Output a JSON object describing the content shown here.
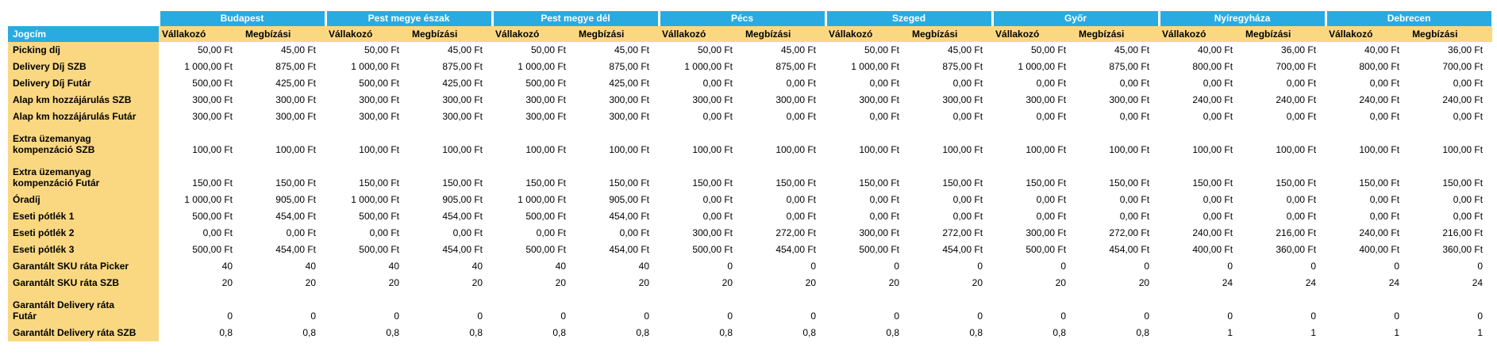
{
  "colors": {
    "header_blue": "#29abe2",
    "cell_yellow": "#fad882",
    "header_text": "#ffffff",
    "body_text": "#000000",
    "background": "#ffffff"
  },
  "table": {
    "corner_label": "Jogcím",
    "regions": [
      "Budapest",
      "Pest megye észak",
      "Pest megye dél",
      "Pécs",
      "Szeged",
      "Győr",
      "Nyíregyháza",
      "Debrecen"
    ],
    "region_subcolumns": [
      "Vállakozó",
      "Megbízási"
    ],
    "rows": [
      {
        "label": "Picking díj",
        "tall": false,
        "values": [
          "50,00 Ft",
          "45,00 Ft",
          "50,00 Ft",
          "45,00 Ft",
          "50,00 Ft",
          "45,00 Ft",
          "50,00 Ft",
          "45,00 Ft",
          "50,00 Ft",
          "45,00 Ft",
          "50,00 Ft",
          "45,00 Ft",
          "40,00 Ft",
          "36,00 Ft",
          "40,00 Ft",
          "36,00 Ft"
        ]
      },
      {
        "label": "Delivery Díj SZB",
        "tall": false,
        "values": [
          "1 000,00 Ft",
          "875,00 Ft",
          "1 000,00 Ft",
          "875,00 Ft",
          "1 000,00 Ft",
          "875,00 Ft",
          "1 000,00 Ft",
          "875,00 Ft",
          "1 000,00 Ft",
          "875,00 Ft",
          "1 000,00 Ft",
          "875,00 Ft",
          "800,00 Ft",
          "700,00 Ft",
          "800,00 Ft",
          "700,00 Ft"
        ]
      },
      {
        "label": "Delivery Díj Futár",
        "tall": false,
        "values": [
          "500,00 Ft",
          "425,00 Ft",
          "500,00 Ft",
          "425,00 Ft",
          "500,00 Ft",
          "425,00 Ft",
          "0,00 Ft",
          "0,00 Ft",
          "0,00 Ft",
          "0,00 Ft",
          "0,00 Ft",
          "0,00 Ft",
          "0,00 Ft",
          "0,00 Ft",
          "0,00 Ft",
          "0,00 Ft"
        ]
      },
      {
        "label": "Alap km hozzájárulás SZB",
        "tall": false,
        "values": [
          "300,00 Ft",
          "300,00 Ft",
          "300,00 Ft",
          "300,00 Ft",
          "300,00 Ft",
          "300,00 Ft",
          "300,00 Ft",
          "300,00 Ft",
          "300,00 Ft",
          "300,00 Ft",
          "300,00 Ft",
          "300,00 Ft",
          "240,00 Ft",
          "240,00 Ft",
          "240,00 Ft",
          "240,00 Ft"
        ]
      },
      {
        "label": "Alap km hozzájárulás Futár",
        "tall": false,
        "values": [
          "300,00 Ft",
          "300,00 Ft",
          "300,00 Ft",
          "300,00 Ft",
          "300,00 Ft",
          "300,00 Ft",
          "0,00 Ft",
          "0,00 Ft",
          "0,00 Ft",
          "0,00 Ft",
          "0,00 Ft",
          "0,00 Ft",
          "0,00 Ft",
          "0,00 Ft",
          "0,00 Ft",
          "0,00 Ft"
        ]
      },
      {
        "label": "Extra üzemanyag\nkompenzáció SZB",
        "tall": true,
        "values": [
          "100,00 Ft",
          "100,00 Ft",
          "100,00 Ft",
          "100,00 Ft",
          "100,00 Ft",
          "100,00 Ft",
          "100,00 Ft",
          "100,00 Ft",
          "100,00 Ft",
          "100,00 Ft",
          "100,00 Ft",
          "100,00 Ft",
          "100,00 Ft",
          "100,00 Ft",
          "100,00 Ft",
          "100,00 Ft"
        ]
      },
      {
        "label": "Extra üzemanyag\nkompenzáció Futár",
        "tall": true,
        "values": [
          "150,00 Ft",
          "150,00 Ft",
          "150,00 Ft",
          "150,00 Ft",
          "150,00 Ft",
          "150,00 Ft",
          "150,00 Ft",
          "150,00 Ft",
          "150,00 Ft",
          "150,00 Ft",
          "150,00 Ft",
          "150,00 Ft",
          "150,00 Ft",
          "150,00 Ft",
          "150,00 Ft",
          "150,00 Ft"
        ]
      },
      {
        "label": "Óradíj",
        "tall": false,
        "values": [
          "1 000,00 Ft",
          "905,00 Ft",
          "1 000,00 Ft",
          "905,00 Ft",
          "1 000,00 Ft",
          "905,00 Ft",
          "0,00 Ft",
          "0,00 Ft",
          "0,00 Ft",
          "0,00 Ft",
          "0,00 Ft",
          "0,00 Ft",
          "0,00 Ft",
          "0,00 Ft",
          "0,00 Ft",
          "0,00 Ft"
        ]
      },
      {
        "label": "Eseti pótlék 1",
        "tall": false,
        "values": [
          "500,00 Ft",
          "454,00 Ft",
          "500,00 Ft",
          "454,00 Ft",
          "500,00 Ft",
          "454,00 Ft",
          "0,00 Ft",
          "0,00 Ft",
          "0,00 Ft",
          "0,00 Ft",
          "0,00 Ft",
          "0,00 Ft",
          "0,00 Ft",
          "0,00 Ft",
          "0,00 Ft",
          "0,00 Ft"
        ]
      },
      {
        "label": "Eseti pótlék 2",
        "tall": false,
        "values": [
          "0,00 Ft",
          "0,00 Ft",
          "0,00 Ft",
          "0,00 Ft",
          "0,00 Ft",
          "0,00 Ft",
          "300,00 Ft",
          "272,00 Ft",
          "300,00 Ft",
          "272,00 Ft",
          "300,00 Ft",
          "272,00 Ft",
          "240,00 Ft",
          "216,00 Ft",
          "240,00 Ft",
          "216,00 Ft"
        ]
      },
      {
        "label": "Eseti pótlék 3",
        "tall": false,
        "values": [
          "500,00 Ft",
          "454,00 Ft",
          "500,00 Ft",
          "454,00 Ft",
          "500,00 Ft",
          "454,00 Ft",
          "500,00 Ft",
          "454,00 Ft",
          "500,00 Ft",
          "454,00 Ft",
          "500,00 Ft",
          "454,00 Ft",
          "400,00 Ft",
          "360,00 Ft",
          "400,00 Ft",
          "360,00 Ft"
        ]
      },
      {
        "label": "Garantált SKU ráta Picker",
        "tall": false,
        "values": [
          "40",
          "40",
          "40",
          "40",
          "40",
          "40",
          "0",
          "0",
          "0",
          "0",
          "0",
          "0",
          "0",
          "0",
          "0",
          "0"
        ]
      },
      {
        "label": "Garantált SKU ráta SZB",
        "tall": false,
        "values": [
          "20",
          "20",
          "20",
          "20",
          "20",
          "20",
          "20",
          "20",
          "20",
          "20",
          "20",
          "20",
          "24",
          "24",
          "24",
          "24"
        ]
      },
      {
        "label": "Garantált Delivery ráta\nFutár",
        "tall": true,
        "values": [
          "0",
          "0",
          "0",
          "0",
          "0",
          "0",
          "0",
          "0",
          "0",
          "0",
          "0",
          "0",
          "0",
          "0",
          "0",
          "0"
        ]
      },
      {
        "label": "Garantált Delivery ráta SZB",
        "tall": false,
        "values": [
          "0,8",
          "0,8",
          "0,8",
          "0,8",
          "0,8",
          "0,8",
          "0,8",
          "0,8",
          "0,8",
          "0,8",
          "0,8",
          "0,8",
          "1",
          "1",
          "1",
          "1"
        ]
      }
    ]
  }
}
